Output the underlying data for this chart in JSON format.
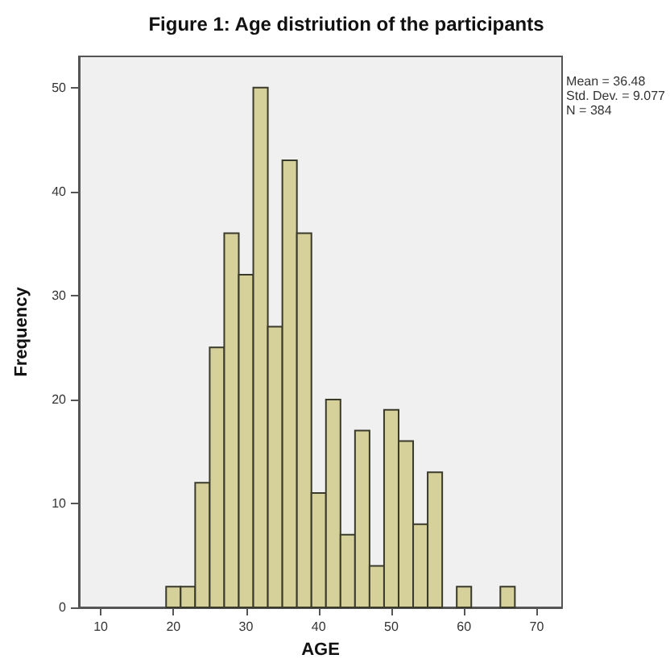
{
  "chart_data": {
    "type": "histogram",
    "title": "Figure 1: Age distriution of the participants",
    "xlabel": "AGE",
    "ylabel": "Frequency",
    "annotations": [
      "Mean = 36.48\nStd. Dev. = 9.077\nN = 384"
    ],
    "bins": [
      19,
      21,
      23,
      25,
      27,
      29,
      31,
      33,
      35,
      37,
      39,
      41,
      43,
      45,
      47,
      49,
      51,
      53,
      55,
      57,
      59,
      61,
      63,
      65,
      67
    ],
    "values": [
      2,
      2,
      12,
      25,
      36,
      32,
      50,
      27,
      43,
      36,
      11,
      20,
      7,
      17,
      4,
      19,
      16,
      8,
      13,
      0,
      2,
      0,
      0,
      2
    ],
    "color": "#d6d09a",
    "xlim": [
      7,
      73.5
    ],
    "xticks": [
      10,
      20,
      30,
      40,
      50,
      60,
      70
    ],
    "ylim": [
      0,
      53
    ],
    "yticks": [
      0,
      10,
      20,
      30,
      40,
      50
    ],
    "grid": false
  }
}
